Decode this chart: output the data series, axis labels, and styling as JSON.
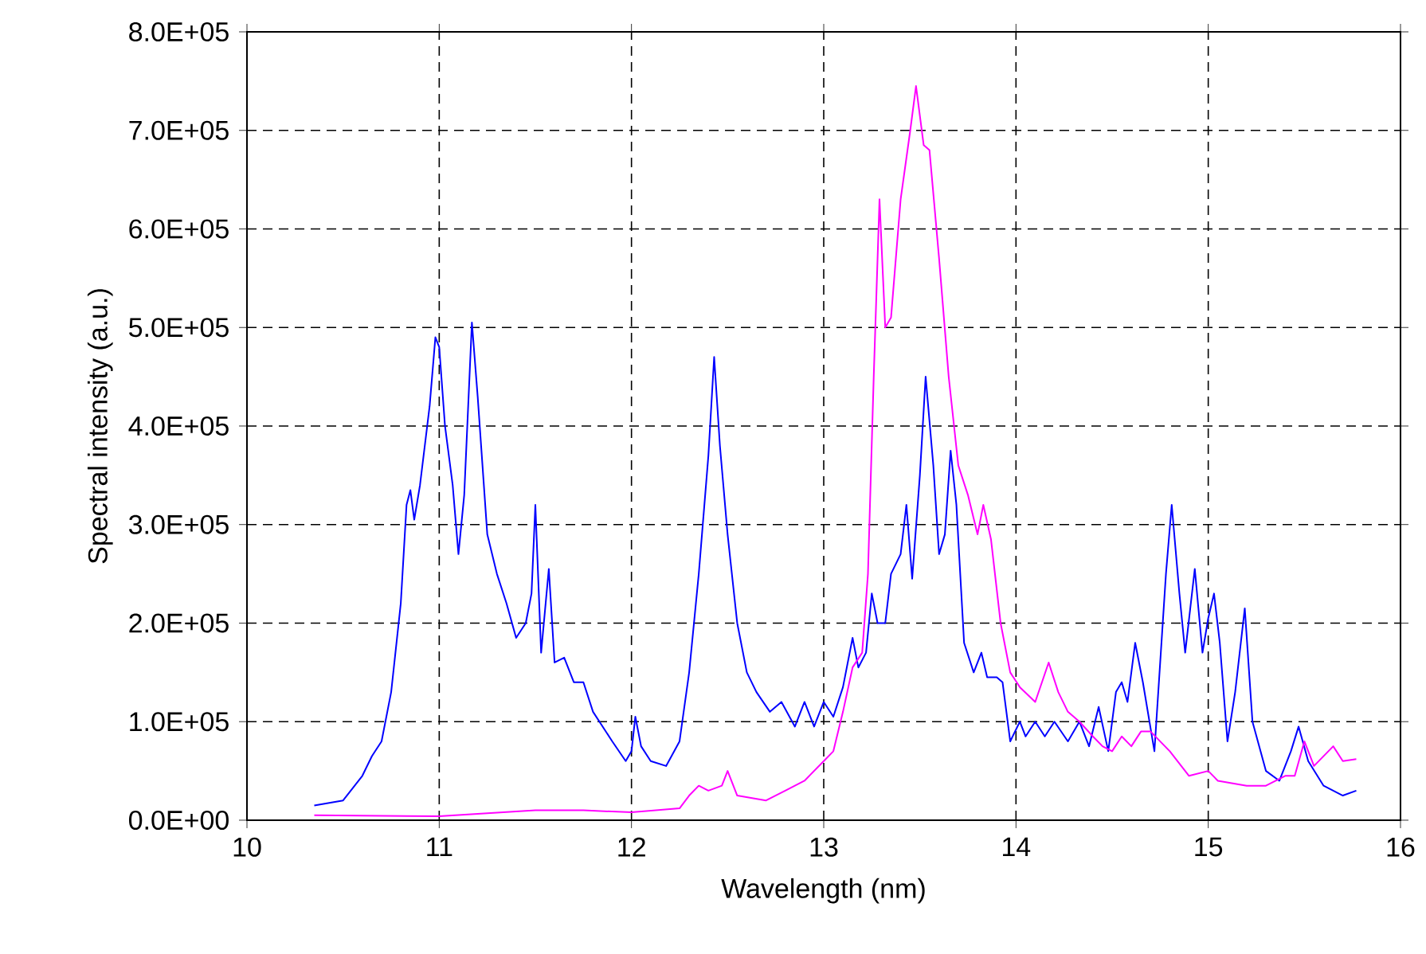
{
  "chart_data": {
    "type": "line",
    "xlabel": "Wavelength (nm)",
    "ylabel": "Spectral intensity (a.u.)",
    "xlim": [
      10,
      16
    ],
    "xticks": [
      10,
      11,
      12,
      13,
      14,
      15,
      16
    ],
    "ylim": [
      0,
      800000
    ],
    "yticks": [
      {
        "value": 0,
        "label": "0.0E+00"
      },
      {
        "value": 100000,
        "label": "1.0E+05"
      },
      {
        "value": 200000,
        "label": "2.0E+05"
      },
      {
        "value": 300000,
        "label": "3.0E+05"
      },
      {
        "value": 400000,
        "label": "4.0E+05"
      },
      {
        "value": 500000,
        "label": "5.0E+05"
      },
      {
        "value": 600000,
        "label": "6.0E+05"
      },
      {
        "value": 700000,
        "label": "7.0E+05"
      },
      {
        "value": 800000,
        "label": "8.0E+05"
      }
    ],
    "grid": true,
    "marker": "none",
    "series": [
      {
        "color": "#0000ff",
        "x": [
          10.35,
          10.5,
          10.6,
          10.65,
          10.7,
          10.75,
          10.8,
          10.83,
          10.85,
          10.87,
          10.9,
          10.95,
          10.98,
          11.0,
          11.03,
          11.07,
          11.1,
          11.13,
          11.17,
          11.2,
          11.25,
          11.3,
          11.35,
          11.4,
          11.45,
          11.48,
          11.5,
          11.53,
          11.57,
          11.6,
          11.65,
          11.7,
          11.75,
          11.8,
          11.9,
          11.97,
          12.0,
          12.02,
          12.05,
          12.1,
          12.18,
          12.25,
          12.3,
          12.35,
          12.4,
          12.43,
          12.46,
          12.5,
          12.55,
          12.6,
          12.65,
          12.72,
          12.78,
          12.85,
          12.9,
          12.95,
          13.0,
          13.05,
          13.1,
          13.15,
          13.18,
          13.22,
          13.25,
          13.28,
          13.32,
          13.35,
          13.4,
          13.43,
          13.46,
          13.5,
          13.53,
          13.57,
          13.6,
          13.63,
          13.66,
          13.69,
          13.73,
          13.78,
          13.82,
          13.85,
          13.9,
          13.93,
          13.97,
          14.02,
          14.05,
          14.1,
          14.15,
          14.2,
          14.27,
          14.33,
          14.38,
          14.43,
          14.48,
          14.52,
          14.55,
          14.58,
          14.62,
          14.66,
          14.72,
          14.78,
          14.81,
          14.85,
          14.88,
          14.93,
          14.97,
          15.0,
          15.03,
          15.06,
          15.1,
          15.14,
          15.19,
          15.23,
          15.3,
          15.37,
          15.43,
          15.47,
          15.52,
          15.6,
          15.7,
          15.77
        ],
        "values": [
          15000,
          20000,
          45000,
          65000,
          80000,
          130000,
          220000,
          320000,
          335000,
          305000,
          340000,
          420000,
          490000,
          480000,
          400000,
          340000,
          270000,
          330000,
          505000,
          430000,
          290000,
          250000,
          220000,
          185000,
          200000,
          230000,
          320000,
          170000,
          255000,
          160000,
          165000,
          140000,
          140000,
          110000,
          80000,
          60000,
          70000,
          105000,
          75000,
          60000,
          55000,
          80000,
          150000,
          250000,
          370000,
          470000,
          380000,
          290000,
          200000,
          150000,
          130000,
          110000,
          120000,
          95000,
          120000,
          95000,
          120000,
          105000,
          135000,
          185000,
          155000,
          170000,
          230000,
          200000,
          200000,
          250000,
          270000,
          320000,
          245000,
          350000,
          450000,
          360000,
          270000,
          290000,
          375000,
          320000,
          180000,
          150000,
          170000,
          145000,
          145000,
          140000,
          80000,
          100000,
          85000,
          100000,
          85000,
          100000,
          80000,
          100000,
          75000,
          115000,
          70000,
          130000,
          140000,
          120000,
          180000,
          140000,
          70000,
          250000,
          320000,
          230000,
          170000,
          255000,
          170000,
          205000,
          230000,
          180000,
          80000,
          130000,
          215000,
          100000,
          50000,
          40000,
          70000,
          95000,
          60000,
          35000,
          25000,
          30000
        ]
      },
      {
        "color": "#ff00ff",
        "x": [
          10.35,
          11.0,
          11.5,
          11.75,
          12.0,
          12.25,
          12.3,
          12.35,
          12.4,
          12.47,
          12.5,
          12.55,
          12.7,
          12.8,
          12.9,
          13.0,
          13.05,
          13.1,
          13.15,
          13.2,
          13.23,
          13.26,
          13.29,
          13.32,
          13.35,
          13.4,
          13.45,
          13.48,
          13.52,
          13.55,
          13.6,
          13.65,
          13.7,
          13.75,
          13.8,
          13.83,
          13.87,
          13.92,
          13.97,
          14.02,
          14.1,
          14.17,
          14.22,
          14.27,
          14.33,
          14.4,
          14.45,
          14.5,
          14.55,
          14.6,
          14.65,
          14.7,
          14.8,
          14.9,
          15.0,
          15.05,
          15.2,
          15.3,
          15.4,
          15.45,
          15.5,
          15.55,
          15.65,
          15.7,
          15.77
        ],
        "values": [
          5000,
          4000,
          10000,
          10000,
          8000,
          12000,
          25000,
          35000,
          30000,
          35000,
          50000,
          25000,
          20000,
          30000,
          40000,
          60000,
          70000,
          110000,
          155000,
          170000,
          250000,
          450000,
          630000,
          500000,
          510000,
          630000,
          700000,
          745000,
          685000,
          680000,
          570000,
          450000,
          360000,
          330000,
          290000,
          320000,
          285000,
          200000,
          150000,
          135000,
          120000,
          160000,
          130000,
          110000,
          100000,
          85000,
          75000,
          70000,
          85000,
          75000,
          90000,
          90000,
          70000,
          45000,
          50000,
          40000,
          35000,
          35000,
          45000,
          45000,
          80000,
          55000,
          75000,
          60000,
          62000
        ]
      }
    ]
  }
}
